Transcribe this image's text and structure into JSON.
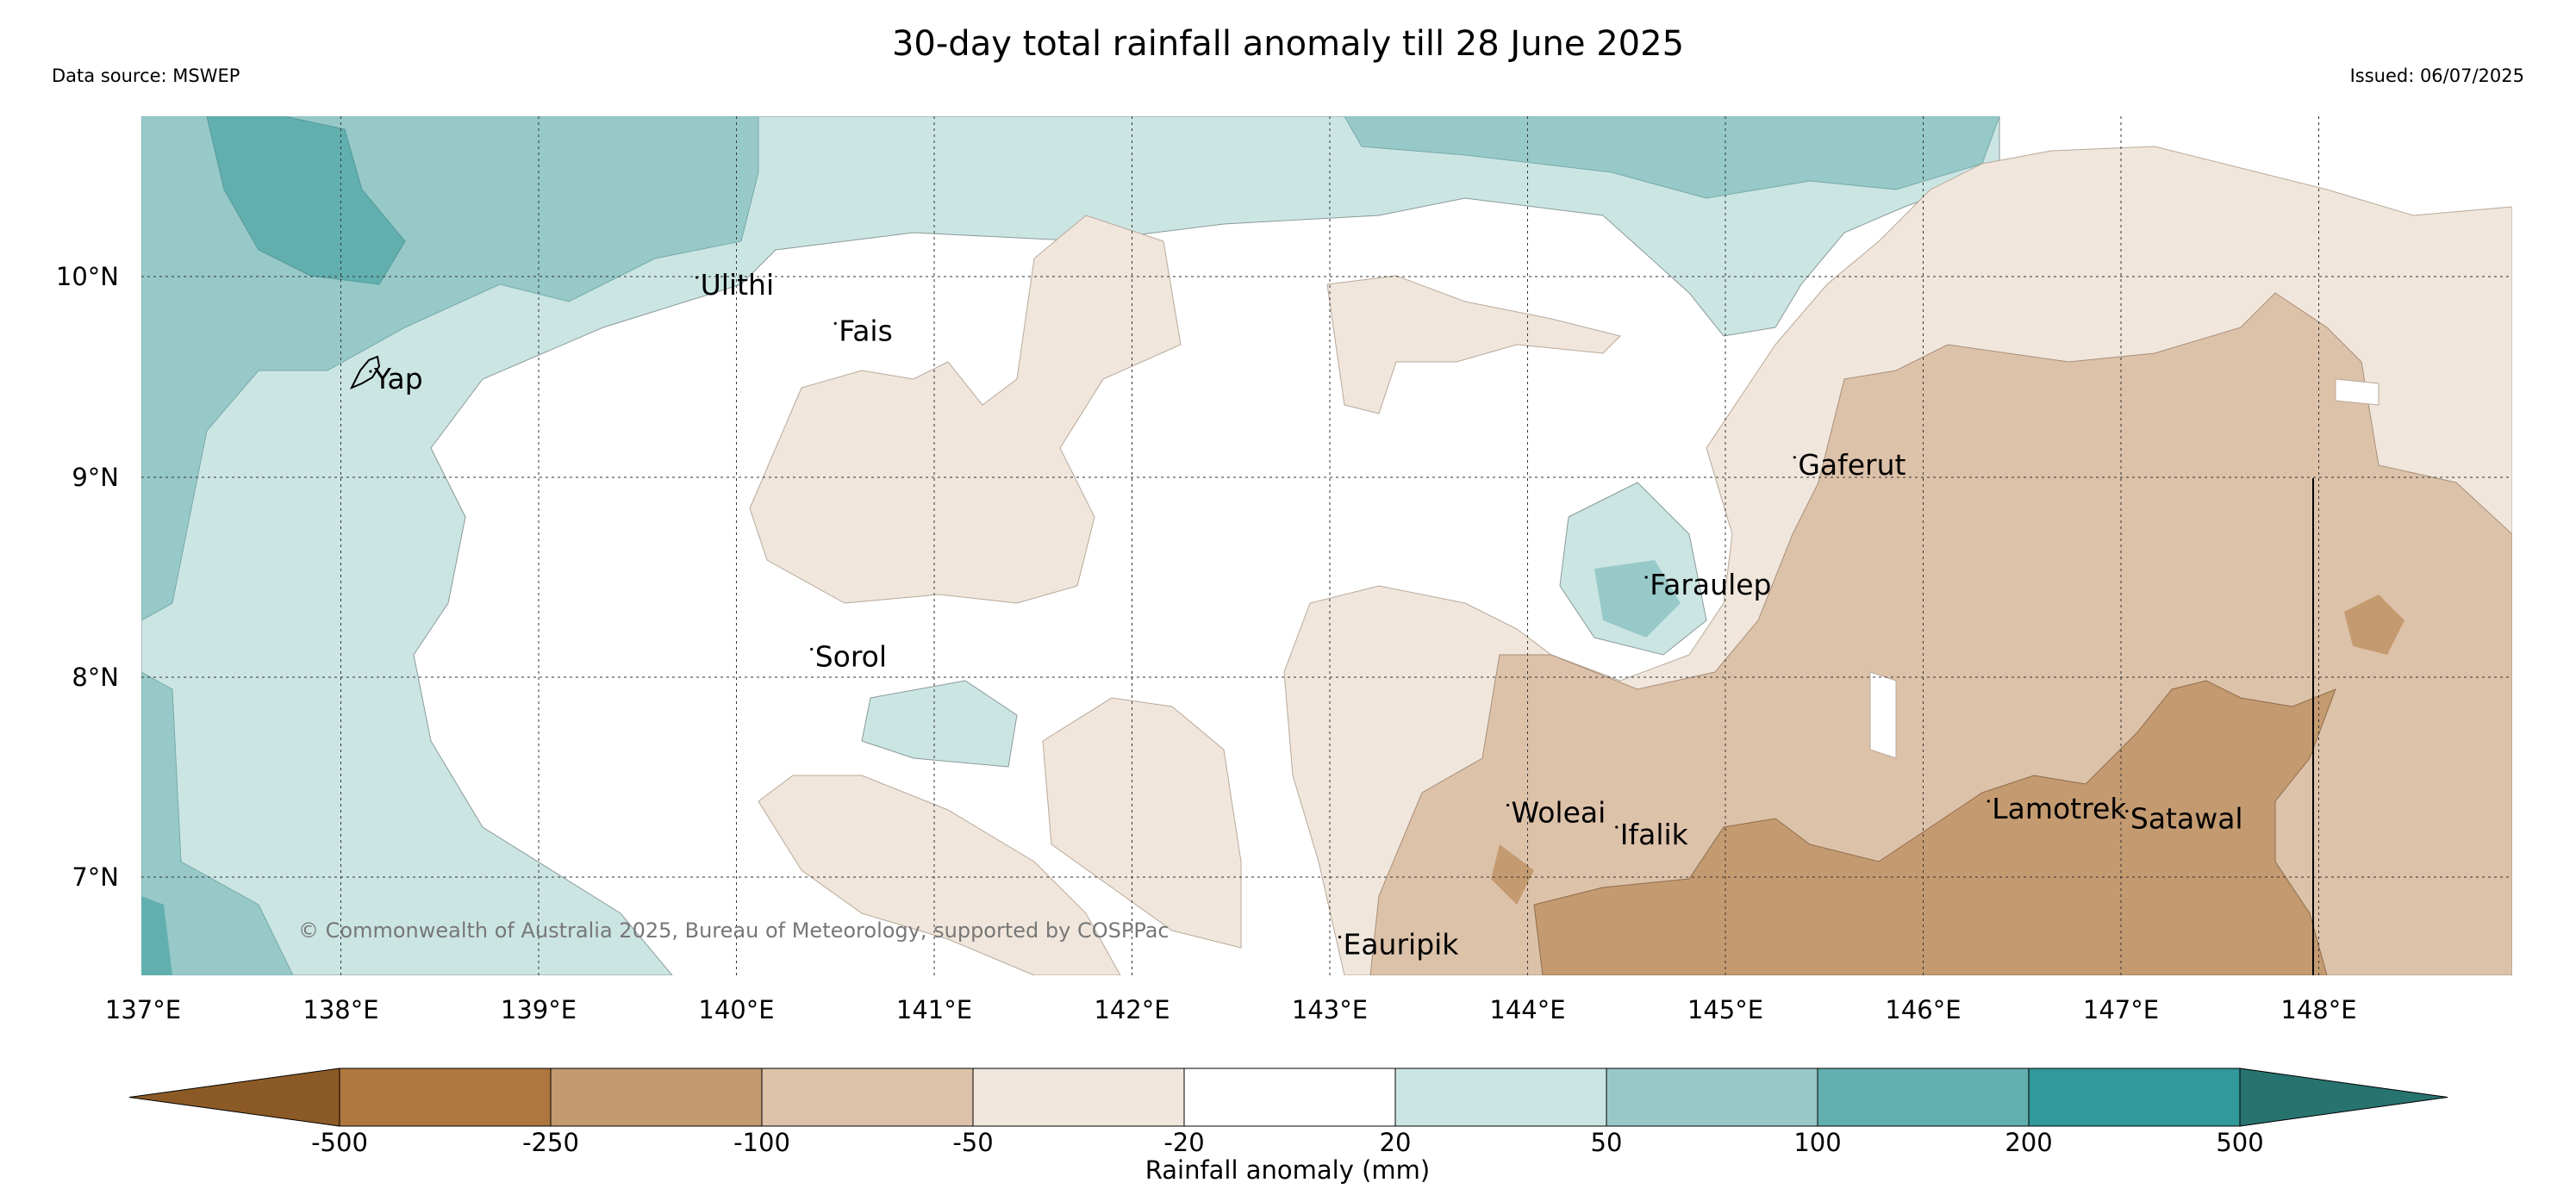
{
  "title": "30-day total rainfall anomaly till 28 June 2025",
  "data_source": "Data source: MSWEP",
  "issued": "Issued: 06/07/2025",
  "copyright": "© Commonwealth of Australia 2025, Bureau of Meteorology, supported by COSPPac",
  "map": {
    "lon_range": [
      137,
      149
    ],
    "lat_range": [
      6.5,
      10.8
    ],
    "lon_ticks": [
      "137°E",
      "138°E",
      "139°E",
      "140°E",
      "141°E",
      "142°E",
      "143°E",
      "144°E",
      "145°E",
      "146°E",
      "147°E",
      "148°E"
    ],
    "lat_ticks": [
      "7°N",
      "8°N",
      "9°N",
      "10°N"
    ],
    "places": [
      {
        "name": "Ulithi",
        "lon": 139.8,
        "lat": 10.0
      },
      {
        "name": "Fais",
        "lon": 140.5,
        "lat": 9.77
      },
      {
        "name": "Yap",
        "lon": 138.15,
        "lat": 9.53
      },
      {
        "name": "Gaferut",
        "lon": 145.35,
        "lat": 9.1
      },
      {
        "name": "Faraulep",
        "lon": 144.6,
        "lat": 8.5
      },
      {
        "name": "Sorol",
        "lon": 140.38,
        "lat": 8.14
      },
      {
        "name": "Woleai",
        "lon": 143.9,
        "lat": 7.36
      },
      {
        "name": "Ifalik",
        "lon": 144.45,
        "lat": 7.25
      },
      {
        "name": "Lamotrek",
        "lon": 146.33,
        "lat": 7.38
      },
      {
        "name": "Satawal",
        "lon": 147.03,
        "lat": 7.33
      },
      {
        "name": "Eauripik",
        "lon": 143.05,
        "lat": 6.7
      }
    ]
  },
  "colorbar": {
    "label": "Rainfall anomaly (mm)",
    "ticks": [
      "-500",
      "-250",
      "-100",
      "-50",
      "-20",
      "20",
      "50",
      "100",
      "200",
      "500"
    ],
    "colors": [
      "#8c5a26",
      "#ae773f",
      "#c49a70",
      "#ddc2aa",
      "#f0e6dc",
      "#ffffff",
      "#cbe5e3",
      "#97c9c8",
      "#62afaf",
      "#31999a",
      "#26736f"
    ]
  }
}
